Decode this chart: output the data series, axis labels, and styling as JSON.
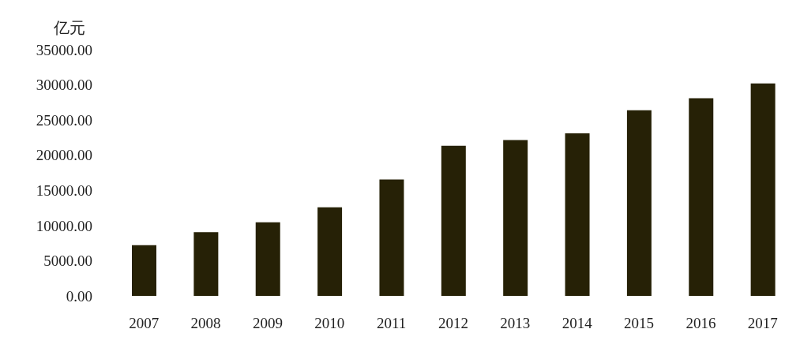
{
  "chart_data": {
    "type": "bar",
    "ylabel": "亿元",
    "categories": [
      "2007",
      "2008",
      "2009",
      "2010",
      "2011",
      "2012",
      "2013",
      "2014",
      "2015",
      "2016",
      "2017"
    ],
    "values": [
      7200,
      9050,
      10450,
      12600,
      16550,
      21350,
      22150,
      23100,
      26400,
      28100,
      30200
    ],
    "color": "#262106",
    "ylim": [
      0,
      35000
    ],
    "yticks": [
      {
        "value": 0,
        "label": "0.00"
      },
      {
        "value": 5000,
        "label": "5000.00"
      },
      {
        "value": 10000,
        "label": "10000.00"
      },
      {
        "value": 15000,
        "label": "15000.00"
      },
      {
        "value": 20000,
        "label": "20000.00"
      },
      {
        "value": 25000,
        "label": "25000.00"
      },
      {
        "value": 30000,
        "label": "30000.00"
      },
      {
        "value": 35000,
        "label": "35000.00"
      }
    ],
    "grid": false,
    "legend": false
  }
}
